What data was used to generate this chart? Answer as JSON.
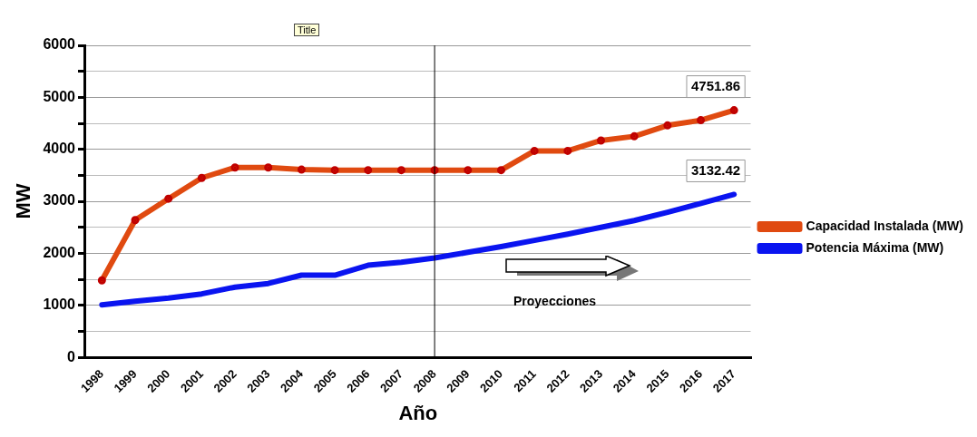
{
  "chart_data": {
    "type": "line",
    "title": "Title",
    "xlabel": "Año",
    "ylabel": "MW",
    "categories": [
      "1998",
      "1999",
      "2000",
      "2001",
      "2002",
      "2003",
      "2004",
      "2005",
      "2006",
      "2007",
      "2008",
      "2009",
      "2010",
      "2011",
      "2012",
      "2013",
      "2014",
      "2015",
      "2016",
      "2017"
    ],
    "series": [
      {
        "name": "Capacidad Instalada (MW)",
        "color": "#e04a10",
        "marker": "circle",
        "values": [
          1480,
          2640,
          3050,
          3450,
          3650,
          3650,
          3610,
          3600,
          3600,
          3600,
          3600,
          3600,
          3600,
          3970,
          3970,
          4170,
          4250,
          4460,
          4560,
          4751.86
        ],
        "value_labels": [
          null,
          null,
          null,
          null,
          null,
          null,
          null,
          null,
          null,
          null,
          null,
          null,
          null,
          null,
          null,
          null,
          null,
          null,
          null,
          "4751.86"
        ]
      },
      {
        "name": "Potencia Máxima (MW)",
        "color": "#0a14f0",
        "marker": "none",
        "values": [
          1010,
          1080,
          1140,
          1220,
          1350,
          1420,
          1580,
          1580,
          1770,
          1830,
          1910,
          2020,
          2130,
          2250,
          2370,
          2500,
          2630,
          2790,
          2960,
          3132.42
        ],
        "value_labels": [
          null,
          null,
          null,
          null,
          null,
          null,
          null,
          null,
          null,
          null,
          null,
          null,
          null,
          null,
          null,
          null,
          null,
          null,
          null,
          "3132.42"
        ]
      }
    ],
    "ylim": [
      0,
      6000
    ],
    "yticks": [
      0,
      {
        "value": 500,
        "label": null
      },
      1000,
      {
        "value": 1500,
        "label": null
      },
      2000,
      {
        "value": 2500,
        "label": null
      },
      3000,
      {
        "value": 3500,
        "label": null
      },
      4000,
      {
        "value": 4500,
        "label": null
      },
      5000,
      {
        "value": 5500,
        "label": null
      },
      6000
    ],
    "grid": "y",
    "legend": "right",
    "ref_lines": [
      {
        "axis": "x",
        "value": "2008",
        "color": "#000000"
      }
    ],
    "annotations": [
      "Proyecciones"
    ]
  }
}
